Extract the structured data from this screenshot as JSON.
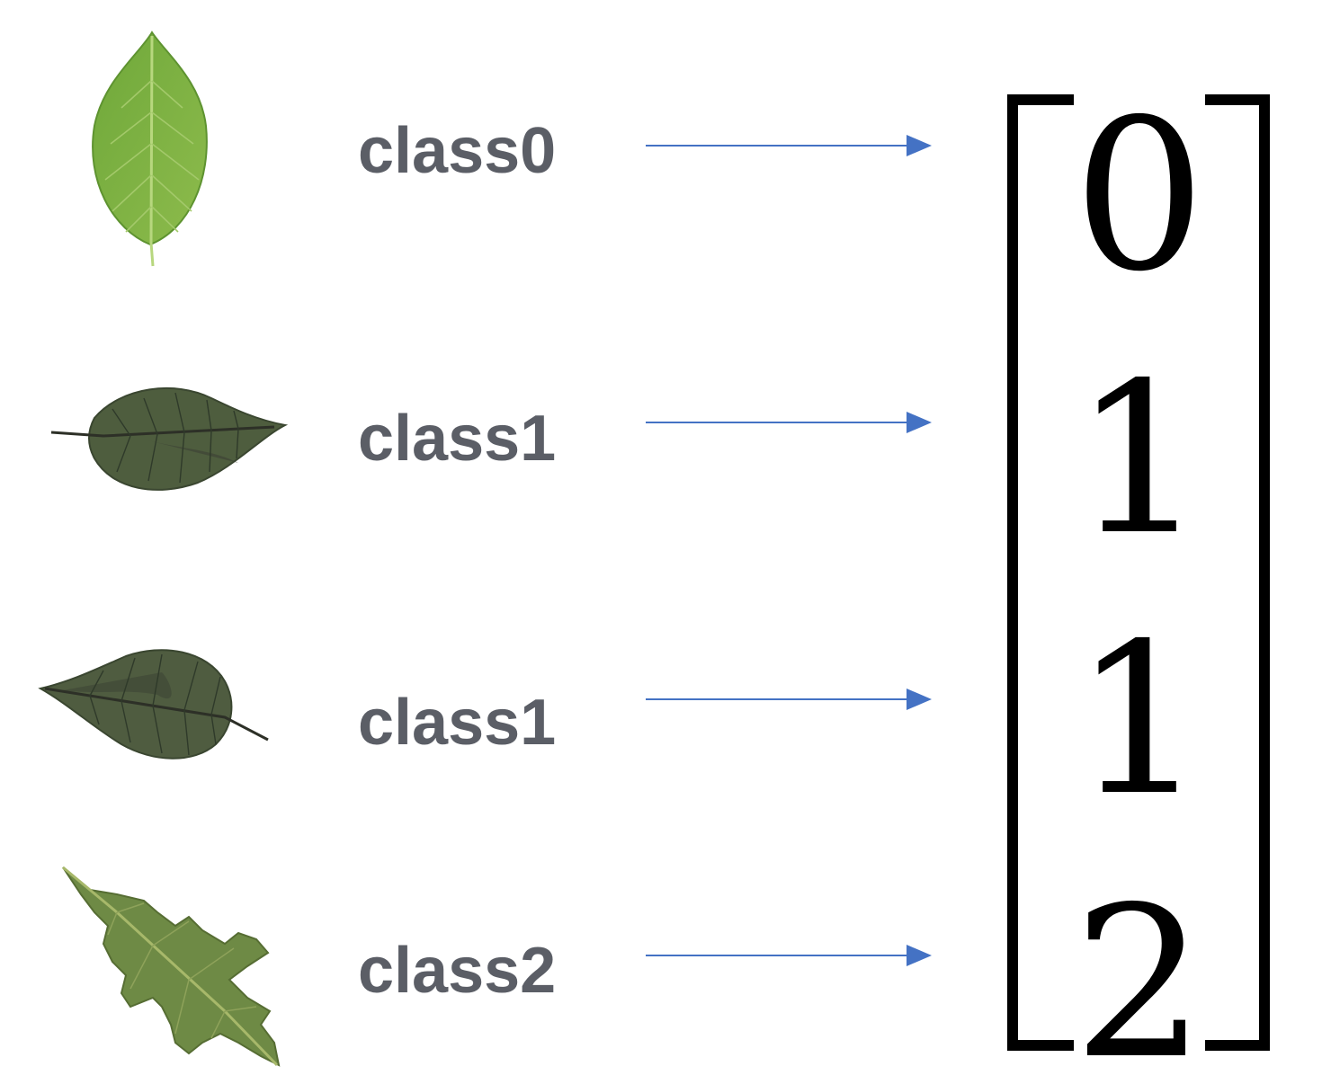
{
  "rows": [
    {
      "label": "class0",
      "value": "0",
      "leaf": "class0-leaf"
    },
    {
      "label": "class1",
      "value": "1",
      "leaf": "class1-leaf"
    },
    {
      "label": "class1",
      "value": "1",
      "leaf": "class1-leaf"
    },
    {
      "label": "class2",
      "value": "2",
      "leaf": "class2-leaf"
    }
  ],
  "colors": {
    "label_text": "#5b5e66",
    "arrow": "#4472c4",
    "bracket": "#000000",
    "leaf_light_green": "#7cb342",
    "leaf_dark_green": "#4b5a3c",
    "leaf_oak_green": "#6e8a45"
  }
}
